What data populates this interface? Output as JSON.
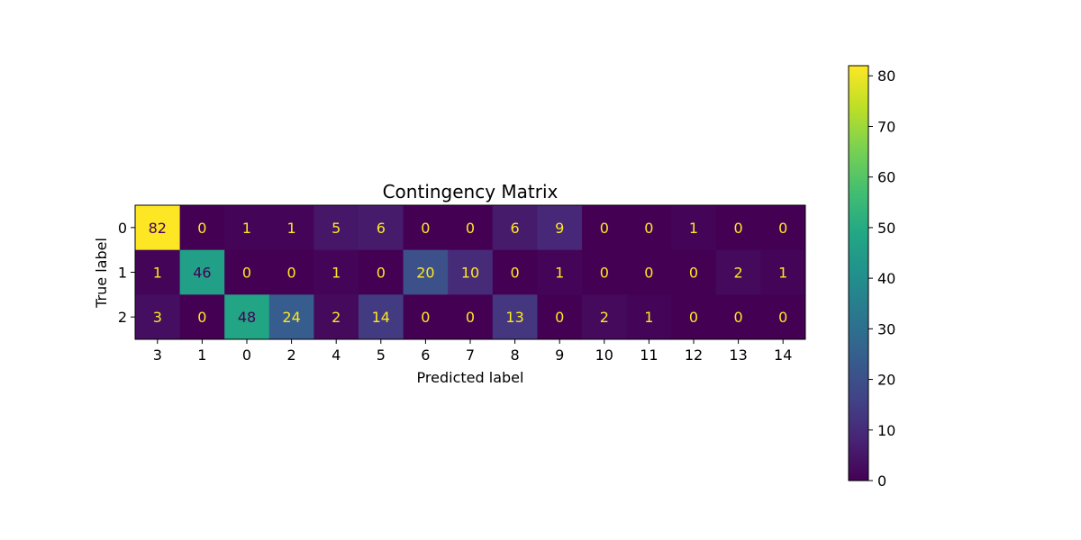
{
  "chart_data": {
    "type": "heatmap",
    "title": "Contingency Matrix",
    "xlabel": "Predicted label",
    "ylabel": "True label",
    "x_categories": [
      "3",
      "1",
      "0",
      "2",
      "4",
      "5",
      "6",
      "7",
      "8",
      "9",
      "10",
      "11",
      "12",
      "13",
      "14"
    ],
    "y_categories": [
      "0",
      "1",
      "2"
    ],
    "values": [
      [
        82,
        0,
        1,
        1,
        5,
        6,
        0,
        0,
        6,
        9,
        0,
        0,
        1,
        0,
        0
      ],
      [
        1,
        46,
        0,
        0,
        1,
        0,
        20,
        10,
        0,
        1,
        0,
        0,
        0,
        2,
        1
      ],
      [
        3,
        0,
        48,
        24,
        2,
        14,
        0,
        0,
        13,
        0,
        2,
        1,
        0,
        0,
        0
      ]
    ],
    "colormap": "viridis",
    "value_range": [
      0,
      82
    ],
    "colorbar_ticks": [
      0,
      10,
      20,
      30,
      40,
      50,
      60,
      70,
      80
    ],
    "annotation_colors": {
      "on_dark": "#fde725",
      "on_light": "#440154"
    }
  }
}
